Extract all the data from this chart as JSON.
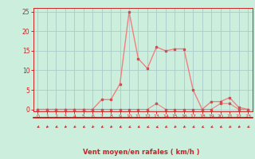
{
  "x": [
    0,
    1,
    2,
    3,
    4,
    5,
    6,
    7,
    8,
    9,
    10,
    11,
    12,
    13,
    14,
    15,
    16,
    17,
    18,
    19,
    20,
    21,
    22,
    23
  ],
  "rafales": [
    0,
    0,
    0,
    0,
    0,
    0,
    0,
    2.5,
    2.5,
    6.5,
    25,
    13,
    10.5,
    16,
    15,
    15.5,
    15.5,
    5,
    0,
    2,
    2,
    3,
    0.5,
    0
  ],
  "moyen": [
    0,
    0,
    0,
    0,
    0,
    0,
    0,
    0,
    0,
    0,
    0,
    0,
    0,
    1.5,
    0,
    0,
    0,
    0,
    0,
    0,
    1.5,
    1.5,
    0,
    0
  ],
  "line_color": "#f08080",
  "marker_color": "#d05050",
  "bg_color": "#cceedd",
  "grid_color": "#aacccc",
  "axis_color": "#cc2222",
  "xlabel": "Vent moyen/en rafales ( km/h )",
  "xlim": [
    -0.5,
    23.5
  ],
  "ylim": [
    -0.5,
    26
  ],
  "yticks": [
    0,
    5,
    10,
    15,
    20,
    25
  ],
  "xticks": [
    0,
    1,
    2,
    3,
    4,
    5,
    6,
    7,
    8,
    9,
    10,
    11,
    12,
    13,
    14,
    15,
    16,
    17,
    18,
    19,
    20,
    21,
    22,
    23
  ]
}
